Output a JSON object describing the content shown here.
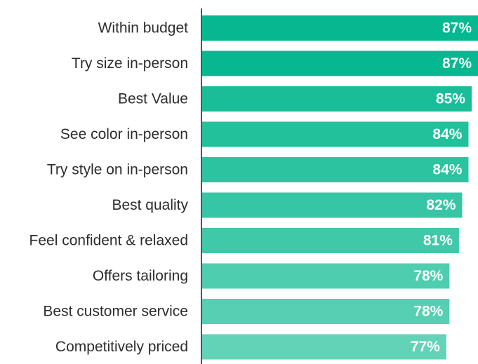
{
  "chart_data": {
    "type": "bar",
    "orientation": "horizontal",
    "title": "",
    "xlabel": "",
    "ylabel": "",
    "grid": false,
    "categories": [
      "Within budget",
      "Try size in-person",
      "Best Value",
      "See color in-person",
      "Try style on in-person",
      "Best quality",
      "Feel confident & relaxed",
      "Offers tailoring",
      "Best customer service",
      "Competitively priced"
    ],
    "values": [
      87,
      87,
      85,
      84,
      84,
      82,
      81,
      78,
      78,
      77
    ],
    "value_labels": [
      "87%",
      "87%",
      "85%",
      "84%",
      "84%",
      "82%",
      "81%",
      "78%",
      "78%",
      "77%"
    ],
    "colors": [
      "#05b890",
      "#05b890",
      "#19bd98",
      "#23c09c",
      "#2cc3a0",
      "#37c6a5",
      "#40c9a9",
      "#4fcdaf",
      "#56cfb2",
      "#63d3b8"
    ],
    "axis_color": "#555555"
  }
}
